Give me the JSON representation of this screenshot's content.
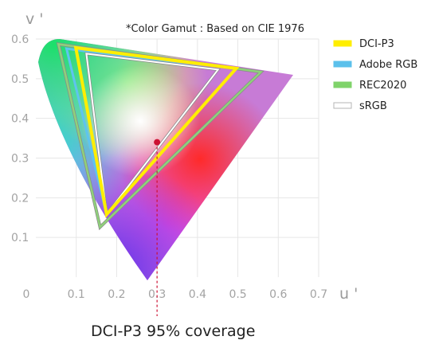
{
  "chart_data": {
    "type": "scatter",
    "title": "",
    "note": "*Color Gamut : Based on CIE 1976",
    "xlabel": "u '",
    "ylabel": "v '",
    "xlim": [
      0,
      0.7
    ],
    "ylim": [
      0,
      0.6
    ],
    "x_ticks": [
      0,
      0.1,
      0.2,
      0.3,
      0.4,
      0.5,
      0.6,
      0.7
    ],
    "x_tick_labels": [
      "0",
      "0.1",
      "0.2",
      "0.3",
      "0.4",
      "0.5",
      "0.6",
      "0.7"
    ],
    "y_ticks": [
      0.1,
      0.2,
      0.3,
      0.4,
      0.5,
      0.6
    ],
    "y_tick_labels": [
      "0.1",
      "0.2",
      "0.3",
      "0.4",
      "0.5",
      "0.6"
    ],
    "grid": true,
    "legend": "right",
    "series": [
      {
        "name": "DCI-P3",
        "color": "#ffee00",
        "points": [
          [
            0.496,
            0.526
          ],
          [
            0.099,
            0.578
          ],
          [
            0.175,
            0.158
          ]
        ]
      },
      {
        "name": "Adobe RGB",
        "color": "#5bc0eb",
        "points": [
          [
            0.451,
            0.523
          ],
          [
            0.076,
            0.576
          ],
          [
            0.175,
            0.158
          ]
        ]
      },
      {
        "name": "REC2020",
        "color": "#7fd36a",
        "points": [
          [
            0.557,
            0.517
          ],
          [
            0.056,
            0.587
          ],
          [
            0.159,
            0.126
          ]
        ]
      },
      {
        "name": "sRGB",
        "color": "#ffffff",
        "points": [
          [
            0.451,
            0.523
          ],
          [
            0.125,
            0.563
          ],
          [
            0.175,
            0.158
          ]
        ]
      }
    ],
    "marker": {
      "x": 0.3,
      "y": 0.34,
      "color": "#cc1133"
    },
    "caption": "DCI-P3 95% coverage"
  }
}
